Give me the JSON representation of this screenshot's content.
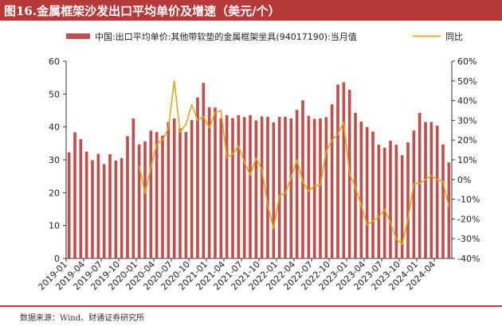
{
  "header": {
    "title": "图16.金属框架沙发出口平均单价及增速（美元/个）"
  },
  "footer": {
    "source": "数据来源：Wind、财通证券研究所"
  },
  "colors": {
    "bar": "#c0504d",
    "line": "#e2a51c",
    "title_bg": "#b53a3a"
  },
  "chart_data": {
    "type": "bar",
    "title": "图16.金属框架沙发出口平均单价及增速（美元/个）",
    "categories": [
      "2019-01",
      "2019-02",
      "2019-03",
      "2019-04",
      "2019-05",
      "2019-06",
      "2019-07",
      "2019-08",
      "2019-09",
      "2019-10",
      "2019-11",
      "2019-12",
      "2020-01",
      "2020-02",
      "2020-03",
      "2020-04",
      "2020-05",
      "2020-06",
      "2020-07",
      "2020-08",
      "2020-09",
      "2020-10",
      "2020-11",
      "2020-12",
      "2021-01",
      "2021-02",
      "2021-03",
      "2021-04",
      "2021-05",
      "2021-06",
      "2021-07",
      "2021-08",
      "2021-09",
      "2021-10",
      "2021-11",
      "2021-12",
      "2022-01",
      "2022-02",
      "2022-03",
      "2022-04",
      "2022-05",
      "2022-06",
      "2022-07",
      "2022-08",
      "2022-09",
      "2022-10",
      "2022-11",
      "2022-12",
      "2023-01",
      "2023-02",
      "2023-03",
      "2023-04",
      "2023-05",
      "2023-06",
      "2023-07",
      "2023-08",
      "2023-09",
      "2023-10",
      "2023-11",
      "2023-12",
      "2024-01",
      "2024-02",
      "2024-03",
      "2024-04",
      "2024-05",
      "2024-06"
    ],
    "x_tick_labels": [
      "2019-01",
      "2019-04",
      "2019-07",
      "2019-10",
      "2020-01",
      "2020-04",
      "2020-07",
      "2020-10",
      "2021-01",
      "2021-04",
      "2021-07",
      "2021-10",
      "2022-01",
      "2022-04",
      "2022-07",
      "2022-10",
      "2023-01",
      "2023-04",
      "2023-07",
      "2023-10",
      "2024-01",
      "2024-04"
    ],
    "series": [
      {
        "name": "中国:出口平均单价:其他带软垫的金属框架坐具(94017190):当月值",
        "type": "bar",
        "axis": "left",
        "values": [
          32.3,
          38.4,
          36.3,
          32.5,
          29.9,
          31.8,
          28.7,
          31.7,
          29.8,
          30.5,
          37.2,
          42.6,
          34.7,
          35.6,
          38.9,
          38.5,
          37.4,
          41.5,
          42.6,
          39.6,
          38.5,
          42.1,
          49.0,
          53.4,
          46.0,
          45.9,
          42.7,
          43.6,
          42.7,
          43.6,
          43.0,
          43.6,
          42.0,
          43.2,
          43.1,
          41.4,
          43.1,
          43.1,
          42.6,
          45.2,
          48.1,
          43.4,
          42.5,
          42.6,
          43.0,
          46.9,
          52.9,
          53.6,
          51.3,
          44.3,
          41.6,
          40.0,
          38.6,
          34.6,
          33.7,
          35.8,
          34.6,
          31.4,
          35.3,
          38.9,
          44.3,
          41.5,
          41.5,
          40.4,
          34.7,
          29.2
        ]
      },
      {
        "name": "同比",
        "type": "line",
        "axis": "right",
        "values": [
          null,
          null,
          null,
          null,
          null,
          null,
          null,
          null,
          null,
          null,
          null,
          null,
          7,
          -7,
          6,
          18,
          20,
          26,
          50,
          24,
          28,
          38,
          30,
          32,
          26,
          34,
          35,
          11,
          13,
          17,
          9,
          2,
          11,
          5,
          -13,
          -25,
          -8,
          -7,
          1,
          10,
          -1,
          -6,
          -3,
          -3,
          14,
          20,
          23,
          29,
          3,
          -4,
          -13,
          -23,
          -21,
          -19,
          -15,
          -22,
          -30,
          -33,
          -20,
          -2,
          -2,
          0,
          2,
          0,
          -1,
          -14
        ]
      }
    ],
    "y_left": {
      "min": 0,
      "max": 60,
      "ticks": [
        0,
        10,
        20,
        30,
        40,
        50,
        60
      ]
    },
    "y_right": {
      "min": -40,
      "max": 60,
      "ticks": [
        "-40%",
        "-30%",
        "-20%",
        "-10%",
        "0%",
        "10%",
        "20%",
        "30%",
        "40%",
        "50%",
        "60%"
      ]
    },
    "legend": {
      "position": "top",
      "labels": [
        "中国:出口平均单价:其他带软垫的金属框架坐具(94017190):当月值",
        "同比"
      ]
    },
    "grid": false
  }
}
